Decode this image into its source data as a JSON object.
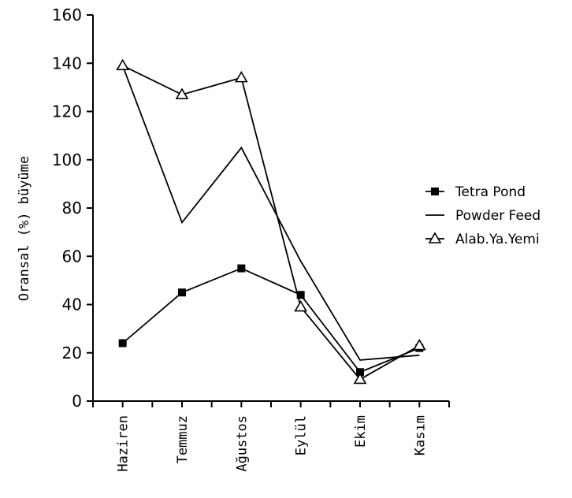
{
  "chart_data": {
    "type": "line",
    "title": "",
    "xlabel": "",
    "ylabel": "Oransal (%) büyüme",
    "categories": [
      "Haziren",
      "Temmuz",
      "Ağustos",
      "Eylül",
      "Ekim",
      "Kasım"
    ],
    "ylim": [
      0,
      160
    ],
    "yticks": [
      0,
      20,
      40,
      60,
      80,
      100,
      120,
      140,
      160
    ],
    "grid": false,
    "legend_position": "right",
    "series": [
      {
        "name": "Tetra Pond",
        "marker": "square",
        "values": [
          24,
          45,
          55,
          44,
          12,
          22
        ]
      },
      {
        "name": "Powder Feed",
        "marker": "none",
        "values": [
          139,
          74,
          105,
          58,
          17,
          19
        ]
      },
      {
        "name": "Alab.Ya.Yemi",
        "marker": "triangle",
        "values": [
          139,
          127,
          134,
          39,
          9,
          23
        ]
      }
    ]
  },
  "colors": {
    "line": "#000000",
    "background": "#ffffff"
  }
}
